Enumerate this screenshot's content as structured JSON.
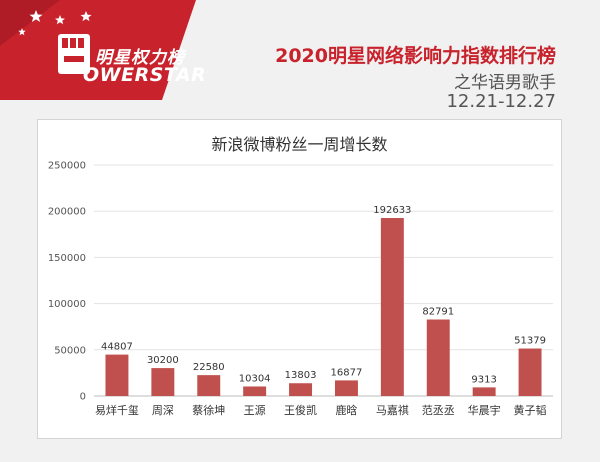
{
  "logo": {
    "cn_text": "明星权力榜",
    "en_text": "OWERSTAR"
  },
  "header": {
    "title": "2020明星网络影响力指数排行榜",
    "subtitle": "之华语男歌手",
    "date_range": "12.21-12.27"
  },
  "colors": {
    "brand_red": "#c8232d",
    "bar": "#c0504d"
  },
  "chart_data": {
    "type": "bar",
    "title": "新浪微博粉丝一周增长数",
    "categories": [
      "易烊千玺",
      "周深",
      "蔡徐坤",
      "王源",
      "王俊凯",
      "鹿晗",
      "马嘉祺",
      "范丞丞",
      "华晨宇",
      "黄子韬"
    ],
    "values": [
      44807,
      30200,
      22580,
      10304,
      13803,
      16877,
      192633,
      82791,
      9313,
      51379
    ],
    "ylim": [
      0,
      250000
    ],
    "yticks": [
      0,
      50000,
      100000,
      150000,
      200000,
      250000
    ],
    "grid": true,
    "legend": "none",
    "data_labels": true
  }
}
